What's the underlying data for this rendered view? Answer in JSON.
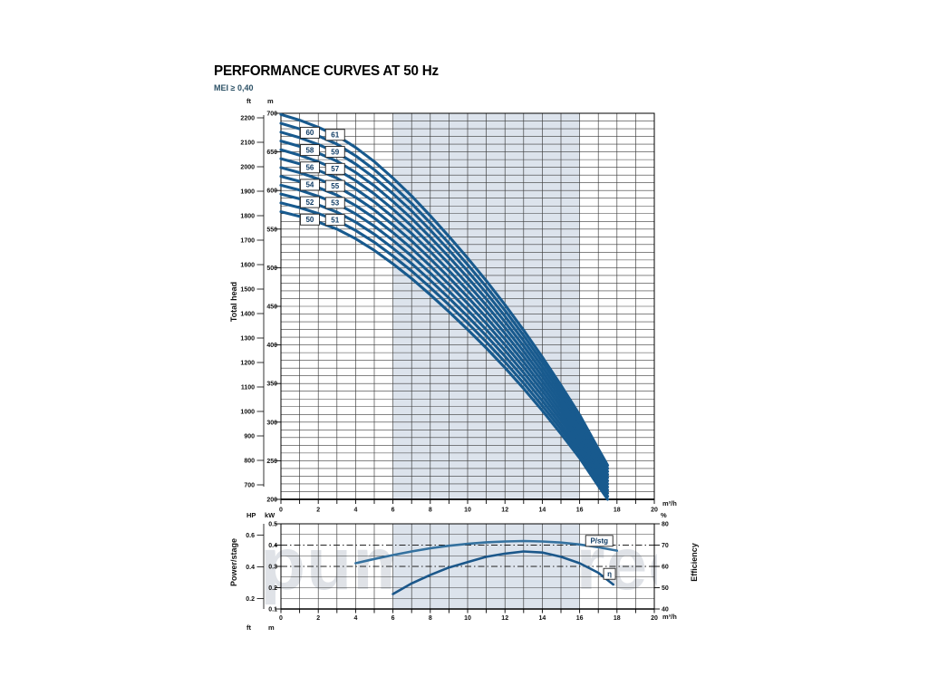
{
  "page": {
    "title": "PERFORMANCE CURVES AT 50 Hz",
    "subtitle": "MEI ≥ 0,40",
    "watermark": "pumpsdirect"
  },
  "colors": {
    "curve_blue": "#185a8e",
    "power_blue": "#34719f",
    "eta_blue": "#1b578a",
    "band": "#dce3ec",
    "grid": "#3a3a3a",
    "box_text": "#0e3a63"
  },
  "axis_units": {
    "ft": "ft",
    "m": "m",
    "hp": "HP",
    "kw": "kW",
    "pct": "%",
    "flow": "m³/h"
  },
  "footer_stub": {
    "ft": "ft",
    "m": "m"
  },
  "chart_data": [
    {
      "id": "total_head",
      "type": "line",
      "title": "Total head vs flow for stage counts 50–61",
      "ylabel": "Total head",
      "xlabel_unit": "m³/h",
      "x_range": [
        0,
        20
      ],
      "x_labeled_ticks": [
        0,
        2,
        4,
        6,
        8,
        10,
        12,
        14,
        16,
        18,
        20
      ],
      "x_minor_step": 1,
      "y_unit_inner": "m",
      "y_range_m": [
        200,
        700
      ],
      "y_labeled_ticks_m": [
        700,
        650,
        600,
        550,
        500,
        450,
        400,
        350,
        300,
        250,
        200
      ],
      "y_minor_step_m": 10,
      "y_unit_outer": "ft",
      "y_labeled_ticks_ft": [
        2200,
        2100,
        2000,
        1900,
        1800,
        1700,
        1600,
        1500,
        1400,
        1300,
        1200,
        1100,
        1000,
        900,
        800,
        700
      ],
      "shaded_band_x": [
        6,
        16
      ],
      "stages": [
        50,
        51,
        52,
        53,
        54,
        55,
        56,
        57,
        58,
        59,
        60,
        61
      ],
      "per_stage_head": {
        "q_m3h": [
          0,
          1,
          2,
          3,
          4,
          5,
          6,
          7,
          8,
          9,
          10,
          11,
          12,
          13,
          14,
          15,
          16,
          17,
          17.5
        ],
        "h_m": [
          11.45,
          11.33,
          11.18,
          11.0,
          10.75,
          10.45,
          10.1,
          9.72,
          9.3,
          8.86,
          8.4,
          7.92,
          7.41,
          6.87,
          6.3,
          5.7,
          5.07,
          4.35,
          4.0
        ]
      },
      "stage_label_columns": [
        {
          "q": 1.55,
          "stages": [
            60,
            58,
            56,
            54,
            52,
            50
          ]
        },
        {
          "q": 2.9,
          "stages": [
            61,
            59,
            57,
            55,
            53,
            51
          ]
        }
      ]
    },
    {
      "id": "power_efficiency",
      "type": "line",
      "ylabel_left": "Power/stage",
      "ylabel_right": "Efficiency",
      "xlabel_unit": "m³/h",
      "x_range": [
        0,
        20
      ],
      "x_labeled_ticks": [
        0,
        2,
        4,
        6,
        8,
        10,
        12,
        14,
        16,
        18,
        20
      ],
      "x_minor_step": 1,
      "y_unit_inner": "kW",
      "y_range_kw": [
        0.1,
        0.5
      ],
      "y_labeled_ticks_kw": [
        "0.5",
        "0.4",
        "0.3",
        "0.2",
        "0.1"
      ],
      "y_minor_step_kw": 0.05,
      "y_unit_outer": "HP",
      "y_labeled_ticks_hp": [
        "0.6",
        "0.4",
        "0.2"
      ],
      "y_unit_right": "%",
      "y_range_pct": [
        40,
        80
      ],
      "y_labeled_ticks_pct": [
        80,
        70,
        60,
        50,
        40
      ],
      "dashed_levels_pct": [
        70,
        60
      ],
      "shaded_band_x": [
        6,
        16
      ],
      "series": [
        {
          "name": "P/stg",
          "axis": "kW",
          "x": [
            4,
            5,
            6,
            7,
            8,
            9,
            10,
            11,
            12,
            13,
            14,
            15,
            16,
            17,
            18
          ],
          "y": [
            0.315,
            0.335,
            0.353,
            0.37,
            0.385,
            0.397,
            0.406,
            0.413,
            0.417,
            0.419,
            0.417,
            0.412,
            0.403,
            0.39,
            0.374
          ]
        },
        {
          "name": "η",
          "axis": "%",
          "x": [
            6,
            7,
            8,
            9,
            10,
            11,
            12,
            13,
            14,
            15,
            16,
            17,
            17.8
          ],
          "y": [
            47,
            52,
            56,
            59.5,
            62,
            64.5,
            66,
            67,
            66.5,
            64.5,
            61.5,
            57,
            51.5
          ]
        }
      ],
      "series_labels": [
        {
          "text": "P/stg",
          "q": 17.05,
          "pct": 72
        },
        {
          "text": "η",
          "q": 17.6,
          "pct": 56.5
        }
      ]
    }
  ]
}
